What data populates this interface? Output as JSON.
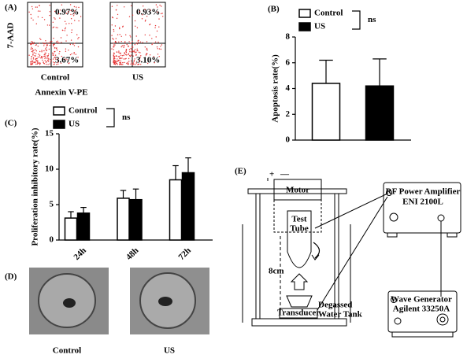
{
  "panel_labels": [
    "(A)",
    "(B)",
    "(C)",
    "(D)",
    "(E)"
  ],
  "flow": {
    "x_label": "Annexin V-PE",
    "y_label": "7-AAD",
    "plots": [
      {
        "label": "Control",
        "upper_right": "0.97%",
        "lower_right": "3.67%"
      },
      {
        "label": "US",
        "upper_right": "0.93%",
        "lower_right": "3.10%"
      }
    ]
  },
  "chart_data": [
    {
      "type": "bar",
      "y_label": "Apoptosis rate(%)",
      "categories": [
        null
      ],
      "series": [
        {
          "name": "Control",
          "color": "#ffffff",
          "values": [
            4.4
          ],
          "errors": [
            1.8
          ]
        },
        {
          "name": "US",
          "color": "#000000",
          "values": [
            4.2
          ],
          "errors": [
            2.1
          ]
        }
      ],
      "annotation": "ns",
      "ylim": [
        0,
        8
      ],
      "yticks": [
        0,
        2,
        4,
        6,
        8
      ]
    },
    {
      "type": "bar",
      "y_label": "Proliferation inhibitory rate(%)",
      "categories": [
        "24h",
        "48h",
        "72h"
      ],
      "series": [
        {
          "name": "Control",
          "color": "#ffffff",
          "values": [
            3.1,
            5.9,
            8.5
          ],
          "errors": [
            0.9,
            1.1,
            2.0
          ]
        },
        {
          "name": "US",
          "color": "#000000",
          "values": [
            3.8,
            5.7,
            9.5
          ],
          "errors": [
            0.8,
            1.5,
            2.1
          ]
        }
      ],
      "annotation": "ns",
      "ylim": [
        0,
        15
      ],
      "yticks": [
        0,
        5,
        10,
        15
      ]
    }
  ],
  "micrographs": {
    "labels": [
      "Control",
      "US"
    ]
  },
  "setup": {
    "plus": "+",
    "minus": "—",
    "motor": "Motor",
    "tube": [
      "Test",
      "Tube"
    ],
    "distance": "8cm",
    "transducer": "Transducer",
    "tank": [
      "Degassed",
      "Water Tank"
    ],
    "amplifier": [
      "RF Power Amplifier",
      "ENI 2100L"
    ],
    "generator": [
      "Wave Generator",
      "Agilent 33250A"
    ]
  }
}
